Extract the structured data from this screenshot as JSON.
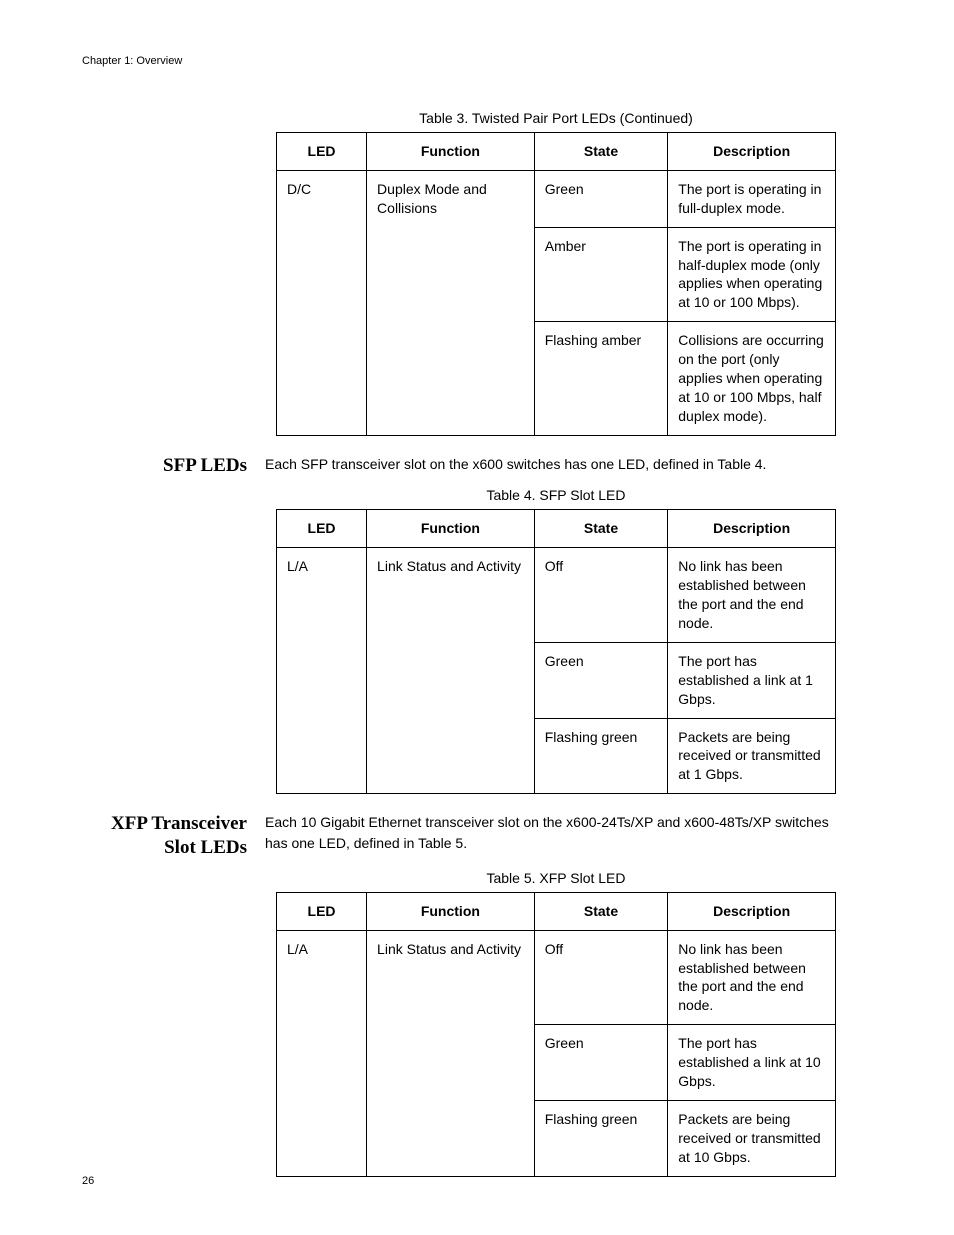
{
  "chapter_header": "Chapter 1: Overview",
  "page_number": "26",
  "table3": {
    "caption": "Table 3.  Twisted Pair Port LEDs (Continued)",
    "columns": [
      "LED",
      "Function",
      "State",
      "Description"
    ],
    "led": "D/C",
    "function": "Duplex Mode and Collisions",
    "rows": [
      {
        "state": "Green",
        "desc": "The port is operating in full-duplex mode."
      },
      {
        "state": "Amber",
        "desc": "The port is operating in half-duplex mode (only applies when operating at 10 or 100 Mbps)."
      },
      {
        "state": "Flashing amber",
        "desc": "Collisions are occurring on the port (only applies when operating at 10 or 100 Mbps, half duplex mode)."
      }
    ]
  },
  "section_sfp": {
    "heading": "SFP LEDs",
    "text": "Each SFP transceiver slot on the x600 switches has one LED, defined in Table 4."
  },
  "table4": {
    "caption": "Table 4. SFP Slot LED",
    "columns": [
      "LED",
      "Function",
      "State",
      "Description"
    ],
    "led": "L/A",
    "function": "Link Status and Activity",
    "rows": [
      {
        "state": "Off",
        "desc": "No link has been established between the port and the end node."
      },
      {
        "state": "Green",
        "desc": "The port has established a link at 1 Gbps."
      },
      {
        "state": "Flashing green",
        "desc": "Packets are being received or transmitted at 1 Gbps."
      }
    ]
  },
  "section_xfp": {
    "heading": "XFP Transceiver Slot LEDs",
    "text": "Each 10 Gigabit Ethernet transceiver slot on the x600-24Ts/XP and x600-48Ts/XP switches has one LED, defined in Table 5."
  },
  "table5": {
    "caption": "Table 5. XFP Slot LED",
    "columns": [
      "LED",
      "Function",
      "State",
      "Description"
    ],
    "led": "L/A",
    "function": "Link Status and Activity",
    "rows": [
      {
        "state": "Off",
        "desc": "No link has been established between the port and the end node."
      },
      {
        "state": "Green",
        "desc": "The port has established a link at 10 Gbps."
      },
      {
        "state": "Flashing green",
        "desc": "Packets are being received or transmitted at 10 Gbps."
      }
    ]
  }
}
